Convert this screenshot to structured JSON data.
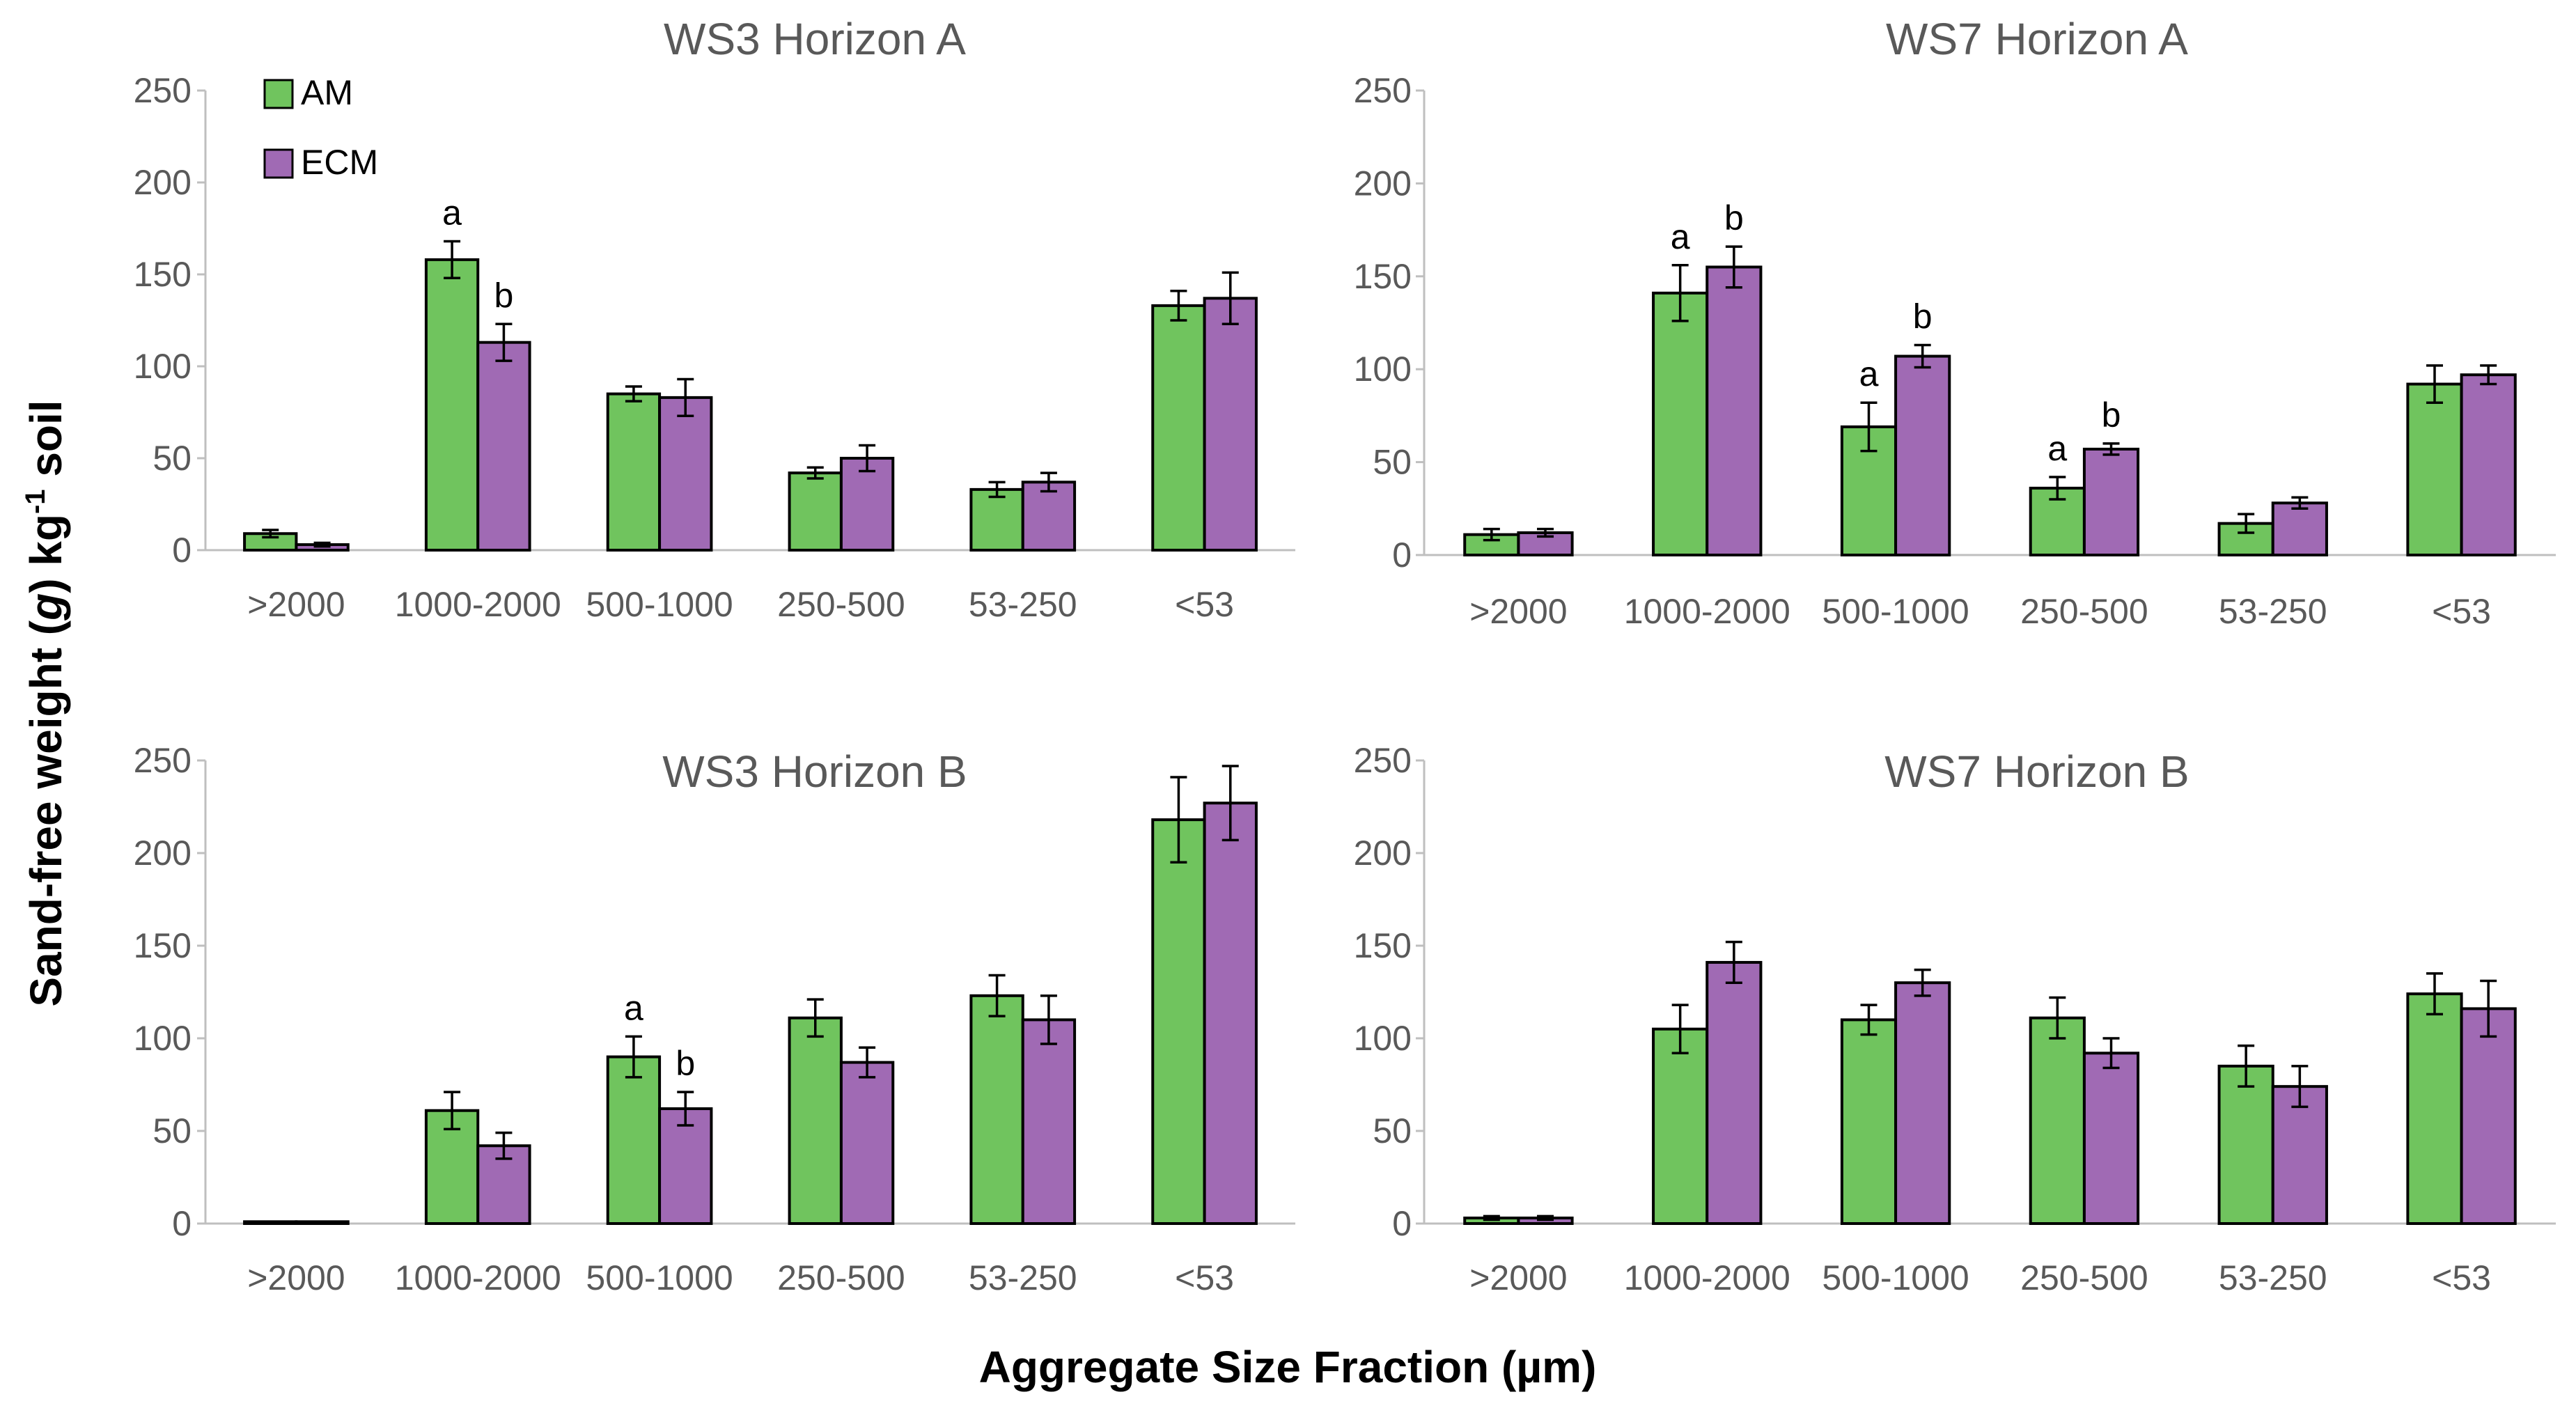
{
  "figure": {
    "ylabel_main": "Sand-free weight (",
    "ylabel_g": "g",
    "ylabel_rest": ") kg",
    "ylabel_sup": "-1",
    "ylabel_end": " soil",
    "xlabel": "Aggregate Size Fraction (µm)"
  },
  "legend": [
    {
      "name": "AM",
      "color": "#70c45e"
    },
    {
      "name": "ECM",
      "color": "#a06ab4"
    }
  ],
  "chart_data": [
    {
      "type": "bar",
      "title": "WS3 Horizon A",
      "categories": [
        ">2000",
        "1000-2000",
        "500-1000",
        "250-500",
        "53-250",
        "<53"
      ],
      "yticks": [
        "0",
        "50",
        "100",
        "150",
        "200",
        "250"
      ],
      "ylim": [
        0,
        250
      ],
      "series": [
        {
          "name": "AM",
          "values": [
            9,
            158,
            85,
            42,
            33,
            133
          ],
          "errors": [
            2,
            10,
            4,
            3,
            4,
            8
          ],
          "labels": [
            "",
            "a",
            "",
            "",
            "",
            ""
          ]
        },
        {
          "name": "ECM",
          "values": [
            3,
            113,
            83,
            50,
            37,
            137
          ],
          "errors": [
            1,
            10,
            10,
            7,
            5,
            14
          ],
          "labels": [
            "",
            "b",
            "",
            "",
            "",
            ""
          ]
        }
      ]
    },
    {
      "type": "bar",
      "title": "WS7 Horizon A",
      "categories": [
        ">2000",
        "1000-2000",
        "500-1000",
        "250-500",
        "53-250",
        "<53"
      ],
      "yticks": [
        "0",
        "50",
        "100",
        "150",
        "200",
        "250"
      ],
      "ylim": [
        0,
        250
      ],
      "series": [
        {
          "name": "AM",
          "values": [
            11,
            141,
            69,
            36,
            17,
            92
          ],
          "errors": [
            3,
            15,
            13,
            6,
            5,
            10
          ],
          "labels": [
            "",
            "a",
            "a",
            "a",
            "",
            ""
          ]
        },
        {
          "name": "ECM",
          "values": [
            12,
            155,
            107,
            57,
            28,
            97
          ],
          "errors": [
            2,
            11,
            6,
            3,
            3,
            5
          ],
          "labels": [
            "",
            "b",
            "b",
            "b",
            "",
            ""
          ]
        }
      ]
    },
    {
      "type": "bar",
      "title": "WS3 Horizon B",
      "categories": [
        ">2000",
        "1000-2000",
        "500-1000",
        "250-500",
        "53-250",
        "<53"
      ],
      "yticks": [
        "0",
        "50",
        "100",
        "150",
        "200",
        "250"
      ],
      "ylim": [
        0,
        250
      ],
      "series": [
        {
          "name": "AM",
          "values": [
            1,
            61,
            90,
            111,
            123,
            218
          ],
          "errors": [
            0,
            10,
            11,
            10,
            11,
            23
          ],
          "labels": [
            "",
            "",
            "a",
            "",
            "",
            ""
          ]
        },
        {
          "name": "ECM",
          "values": [
            1,
            42,
            62,
            87,
            110,
            227
          ],
          "errors": [
            0,
            7,
            9,
            8,
            13,
            20
          ],
          "labels": [
            "",
            "",
            "b",
            "",
            "",
            ""
          ]
        }
      ]
    },
    {
      "type": "bar",
      "title": "WS7 Horizon B",
      "categories": [
        ">2000",
        "1000-2000",
        "500-1000",
        "250-500",
        "53-250",
        "<53"
      ],
      "yticks": [
        "0",
        "50",
        "100",
        "150",
        "200",
        "250"
      ],
      "ylim": [
        0,
        250
      ],
      "series": [
        {
          "name": "AM",
          "values": [
            3,
            105,
            110,
            111,
            85,
            124
          ],
          "errors": [
            1,
            13,
            8,
            11,
            11,
            11
          ],
          "labels": [
            "",
            "",
            "",
            "",
            "",
            ""
          ]
        },
        {
          "name": "ECM",
          "values": [
            3,
            141,
            130,
            92,
            74,
            116
          ],
          "errors": [
            1,
            11,
            7,
            8,
            11,
            15
          ],
          "labels": [
            "",
            "",
            "",
            "",
            "",
            ""
          ]
        }
      ]
    }
  ]
}
